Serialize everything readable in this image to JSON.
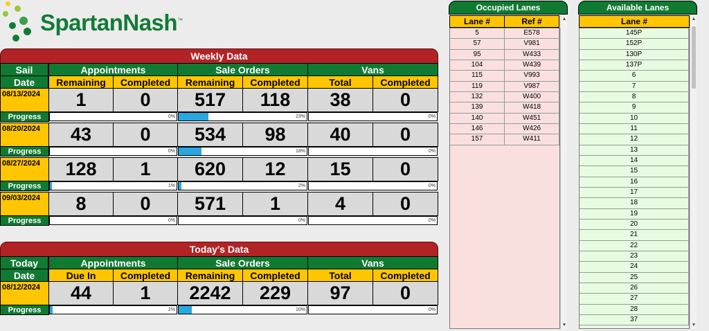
{
  "logo": {
    "text": "SpartanNash",
    "tm": "™"
  },
  "weekly": {
    "title": "Weekly Data",
    "date_label_1": "Sail",
    "date_label_2": "Date",
    "groups": [
      "Appointments",
      "Sale Orders",
      "Vans"
    ],
    "subheads": [
      "Remaining",
      "Completed",
      "Remaining",
      "Completed",
      "Total",
      "Completed"
    ],
    "progress_label": "Progress",
    "rows": [
      {
        "date": "08/13/2024",
        "values": [
          "1",
          "0",
          "517",
          "118",
          "38",
          "0"
        ],
        "progress": [
          0,
          23,
          0
        ],
        "progress_text": [
          "0%",
          "23%",
          "0%"
        ]
      },
      {
        "date": "08/20/2024",
        "values": [
          "43",
          "0",
          "534",
          "98",
          "40",
          "0"
        ],
        "progress": [
          0,
          18,
          0
        ],
        "progress_text": [
          "0%",
          "18%",
          "0%"
        ]
      },
      {
        "date": "08/27/2024",
        "values": [
          "128",
          "1",
          "620",
          "12",
          "15",
          "0"
        ],
        "progress": [
          1,
          2,
          0
        ],
        "progress_text": [
          "1%",
          "2%",
          "0%"
        ]
      },
      {
        "date": "09/03/2024",
        "values": [
          "8",
          "0",
          "571",
          "1",
          "4",
          "0"
        ],
        "progress": [
          0,
          0,
          0
        ],
        "progress_text": [
          "0%",
          "0%",
          "0%"
        ]
      }
    ]
  },
  "today": {
    "title": "Today's Data",
    "date_label_1": "Today",
    "date_label_2": "Date",
    "groups": [
      "Appointments",
      "Sale Orders",
      "Vans"
    ],
    "subheads": [
      "Due In",
      "Completed",
      "Remaining",
      "Completed",
      "Total",
      "Completed"
    ],
    "progress_label": "Progress",
    "row": {
      "date": "08/12/2024",
      "values": [
        "44",
        "1",
        "2242",
        "229",
        "97",
        "0"
      ],
      "progress": [
        2,
        10,
        0
      ],
      "progress_text": [
        "2%",
        "10%",
        "0%"
      ]
    }
  },
  "occupied": {
    "title": "Occupied Lanes",
    "col1": "Lane #",
    "col2": "Ref #",
    "rows": [
      [
        "5",
        "E578"
      ],
      [
        "57",
        "V981"
      ],
      [
        "95",
        "W433"
      ],
      [
        "104",
        "W439"
      ],
      [
        "115",
        "V993"
      ],
      [
        "119",
        "V987"
      ],
      [
        "132",
        "W400"
      ],
      [
        "139",
        "W418"
      ],
      [
        "140",
        "W451"
      ],
      [
        "146",
        "W426"
      ],
      [
        "157",
        "W411"
      ]
    ]
  },
  "available": {
    "title": "Available Lanes",
    "col1": "Lane #",
    "rows": [
      "145P",
      "152P",
      "130P",
      "137P",
      "6",
      "7",
      "8",
      "9",
      "10",
      "11",
      "12",
      "13",
      "14",
      "15",
      "16",
      "17",
      "18",
      "19",
      "20",
      "21",
      "22",
      "23",
      "24",
      "25",
      "26",
      "27",
      "28",
      "37"
    ]
  },
  "colors": {
    "green": "#107a33",
    "red": "#b22326",
    "yellow": "#ffc600",
    "progress_blue": "#29a7e1",
    "occupied_bg": "#f9e0df",
    "available_bg": "#e6fbe1"
  }
}
